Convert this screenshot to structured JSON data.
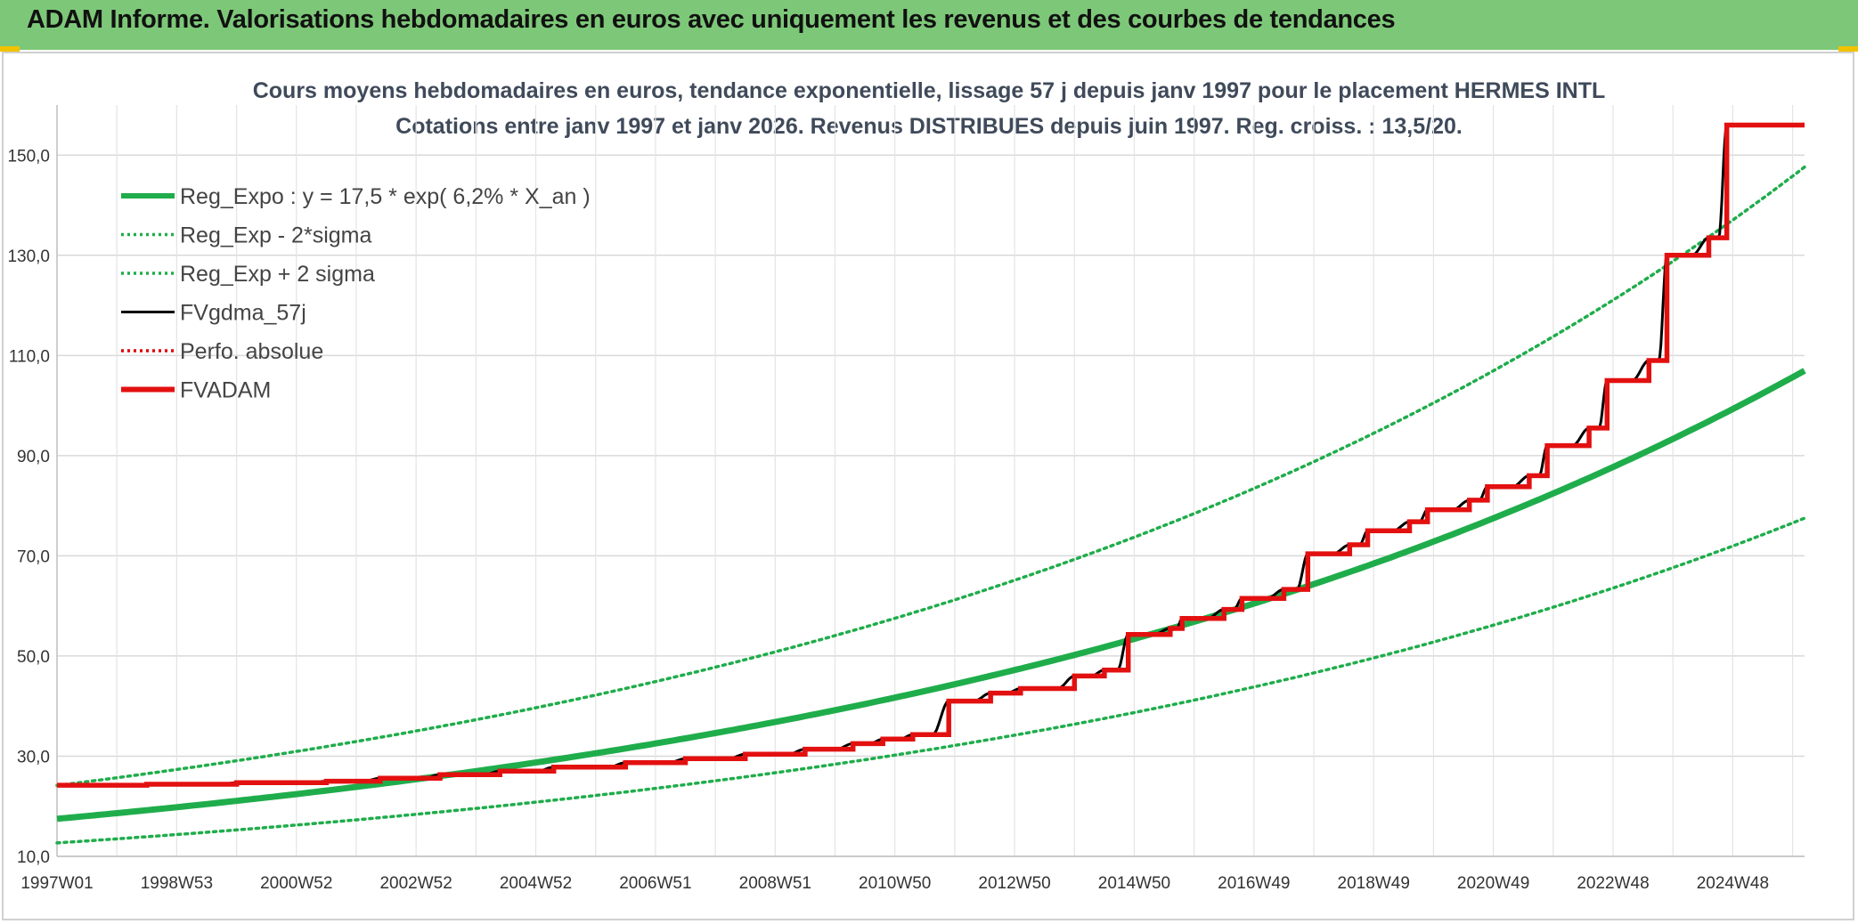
{
  "header": {
    "title": "ADAM Informe. Valorisations hebdomadaires en euros avec uniquement les revenus et des courbes de tendances"
  },
  "chart_data": {
    "type": "line",
    "title_line1": "Cours moyens hebdomadaires en euros, tendance exponentielle, lissage 57 j depuis janv 1997 pour le placement HERMES INTL",
    "title_line2": "Cotations entre janv 1997 et janv 2026. Revenus DISTRIBUES depuis juin 1997. Reg. croiss. : 13,5/20.",
    "xlabel": "",
    "ylabel": "",
    "x_ticks": [
      "1997W01",
      "1998W53",
      "2000W52",
      "2002W52",
      "2004W52",
      "2006W51",
      "2008W51",
      "2010W50",
      "2012W50",
      "2014W50",
      "2016W49",
      "2018W49",
      "2020W49",
      "2022W48",
      "2024W48"
    ],
    "y_ticks": [
      "10,0",
      "30,0",
      "50,0",
      "70,0",
      "90,0",
      "110,0",
      "130,0",
      "150,0"
    ],
    "ylim": [
      10,
      160
    ],
    "xlim": [
      1997.0,
      2026.2
    ],
    "grid": true,
    "legend_position": "top-left",
    "regression": {
      "a": 17.5,
      "rate": 0.062,
      "sigma_factor": 1.38
    },
    "series": [
      {
        "name": "Reg_Expo : y = 17,5 * exp( 6,2% *  X_an )",
        "color": "#1fad4b",
        "style": "solid-thick"
      },
      {
        "name": "Reg_Exp - 2*sigma",
        "color": "#1fad4b",
        "style": "dotted"
      },
      {
        "name": "Reg_Exp + 2 sigma",
        "color": "#1fad4b",
        "style": "dotted"
      },
      {
        "name": "FVgdma_57j",
        "color": "#000000",
        "style": "solid"
      },
      {
        "name": "Perfo. absolue",
        "color": "#e00000",
        "style": "dotted"
      },
      {
        "name": "FVADAM",
        "color": "#e31010",
        "style": "solid-thick",
        "steps": [
          [
            1997.0,
            24.2
          ],
          [
            1998.5,
            24.4
          ],
          [
            2000.0,
            24.7
          ],
          [
            2001.5,
            25.0
          ],
          [
            2002.4,
            25.6
          ],
          [
            2003.4,
            26.3
          ],
          [
            2004.4,
            27.0
          ],
          [
            2005.3,
            27.8
          ],
          [
            2006.5,
            28.7
          ],
          [
            2007.5,
            29.5
          ],
          [
            2008.5,
            30.4
          ],
          [
            2009.5,
            31.4
          ],
          [
            2010.3,
            32.5
          ],
          [
            2010.8,
            33.4
          ],
          [
            2011.3,
            34.3
          ],
          [
            2011.9,
            41.0
          ],
          [
            2012.6,
            42.6
          ],
          [
            2013.1,
            43.5
          ],
          [
            2014.0,
            46.0
          ],
          [
            2014.5,
            47.2
          ],
          [
            2014.9,
            54.3
          ],
          [
            2015.6,
            55.5
          ],
          [
            2015.8,
            57.5
          ],
          [
            2016.5,
            59.3
          ],
          [
            2016.8,
            61.5
          ],
          [
            2017.5,
            63.3
          ],
          [
            2017.9,
            70.4
          ],
          [
            2018.6,
            72.2
          ],
          [
            2018.9,
            75.0
          ],
          [
            2019.6,
            76.8
          ],
          [
            2019.9,
            79.2
          ],
          [
            2020.6,
            81.1
          ],
          [
            2020.9,
            83.8
          ],
          [
            2021.6,
            86.0
          ],
          [
            2021.9,
            92.0
          ],
          [
            2022.6,
            95.5
          ],
          [
            2022.9,
            105.0
          ],
          [
            2023.6,
            109.0
          ],
          [
            2023.9,
            130.0
          ],
          [
            2024.6,
            133.5
          ],
          [
            2024.9,
            156.0
          ],
          [
            2026.2,
            156.0
          ]
        ]
      }
    ]
  }
}
